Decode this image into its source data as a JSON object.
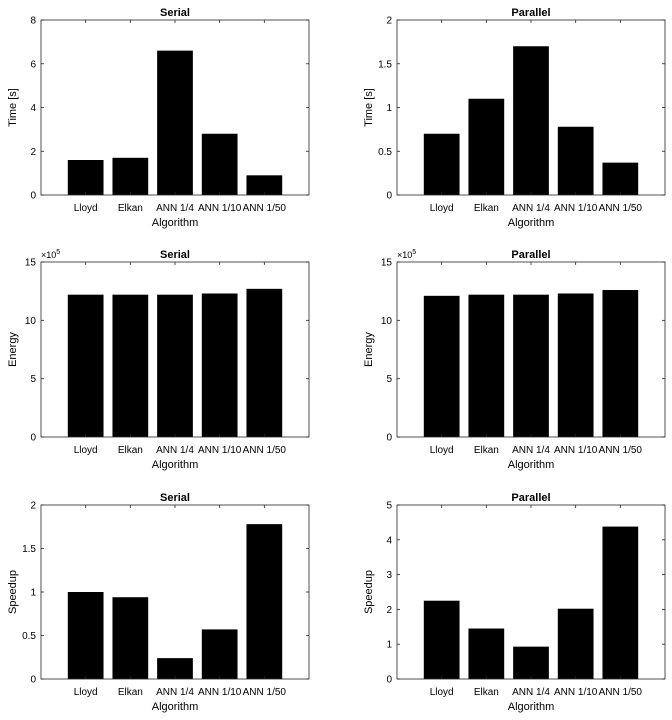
{
  "chart_data": [
    {
      "type": "bar",
      "title": "Serial",
      "xlabel": "Algorithm",
      "ylabel": "Time [s]",
      "categories": [
        "Lloyd",
        "Elkan",
        "ANN 1/4",
        "ANN 1/10",
        "ANN 1/50"
      ],
      "values": [
        1.6,
        1.7,
        6.6,
        2.8,
        0.9
      ],
      "ylim": [
        0,
        8
      ],
      "yticks": [
        "0",
        "2",
        "4",
        "6",
        "8"
      ],
      "bar_color": "#000000"
    },
    {
      "type": "bar",
      "title": "Parallel",
      "xlabel": "Algorithm",
      "ylabel": "Time [s]",
      "categories": [
        "Lloyd",
        "Elkan",
        "ANN 1/4",
        "ANN 1/10",
        "ANN 1/50"
      ],
      "values": [
        0.7,
        1.1,
        1.7,
        0.78,
        0.37
      ],
      "ylim": [
        0,
        2
      ],
      "yticks": [
        "0",
        "0.5",
        "1",
        "1.5",
        "2"
      ],
      "bar_color": "#000000"
    },
    {
      "type": "bar",
      "title": "Serial",
      "xlabel": "Algorithm",
      "ylabel": "Energy",
      "categories": [
        "Lloyd",
        "Elkan",
        "ANN 1/4",
        "ANN 1/10",
        "ANN 1/50"
      ],
      "values": [
        12.2,
        12.2,
        12.2,
        12.3,
        12.7
      ],
      "ylim": [
        0,
        15
      ],
      "yticks": [
        "0",
        "5",
        "10",
        "15"
      ],
      "multiplier": {
        "base": "×10",
        "exponent": "5"
      },
      "bar_color": "#000000"
    },
    {
      "type": "bar",
      "title": "Parallel",
      "xlabel": "Algorithm",
      "ylabel": "Energy",
      "categories": [
        "Lloyd",
        "Elkan",
        "ANN 1/4",
        "ANN 1/10",
        "ANN 1/50"
      ],
      "values": [
        12.1,
        12.2,
        12.2,
        12.3,
        12.6
      ],
      "ylim": [
        0,
        15
      ],
      "yticks": [
        "0",
        "5",
        "10",
        "15"
      ],
      "multiplier": {
        "base": "×10",
        "exponent": "5"
      },
      "bar_color": "#000000"
    },
    {
      "type": "bar",
      "title": "Serial",
      "xlabel": "Algorithm",
      "ylabel": "Speedup",
      "categories": [
        "Lloyd",
        "Elkan",
        "ANN 1/4",
        "ANN 1/10",
        "ANN 1/50"
      ],
      "values": [
        1.0,
        0.94,
        0.24,
        0.57,
        1.78
      ],
      "ylim": [
        0,
        2
      ],
      "yticks": [
        "0",
        "0.5",
        "1",
        "1.5",
        "2"
      ],
      "bar_color": "#000000"
    },
    {
      "type": "bar",
      "title": "Parallel",
      "xlabel": "Algorithm",
      "ylabel": "Speedup",
      "categories": [
        "Lloyd",
        "Elkan",
        "ANN 1/4",
        "ANN 1/10",
        "ANN 1/50"
      ],
      "values": [
        2.25,
        1.45,
        0.93,
        2.02,
        4.38
      ],
      "ylim": [
        0,
        5
      ],
      "yticks": [
        "0",
        "1",
        "2",
        "3",
        "4",
        "5"
      ],
      "bar_color": "#000000"
    }
  ]
}
